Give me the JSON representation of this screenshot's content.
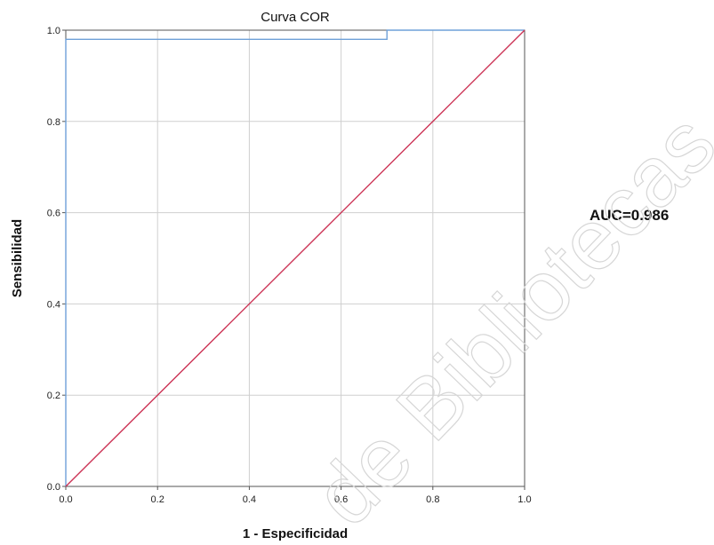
{
  "chart_data": {
    "type": "line",
    "title": "Curva COR",
    "xlabel": "1 - Especificidad",
    "ylabel": "Sensibilidad",
    "xlim": [
      0,
      1
    ],
    "ylim": [
      0,
      1
    ],
    "x_ticks": [
      "0.0",
      "0.2",
      "0.4",
      "0.6",
      "0.8",
      "1.0"
    ],
    "y_ticks": [
      "0.0",
      "0.2",
      "0.4",
      "0.6",
      "0.8",
      "1.0"
    ],
    "grid": true,
    "annotation": "AUC=0.986",
    "series": [
      {
        "color": "#6fa0d8",
        "step": true,
        "points": [
          [
            0,
            0
          ],
          [
            0,
            0.98
          ],
          [
            0.7,
            0.98
          ],
          [
            0.7,
            1.0
          ],
          [
            1.0,
            1.0
          ]
        ]
      },
      {
        "color": "#cc3355",
        "points": [
          [
            0,
            0
          ],
          [
            1.0,
            1.0
          ]
        ]
      }
    ],
    "watermark": "de Bibliotecas"
  }
}
